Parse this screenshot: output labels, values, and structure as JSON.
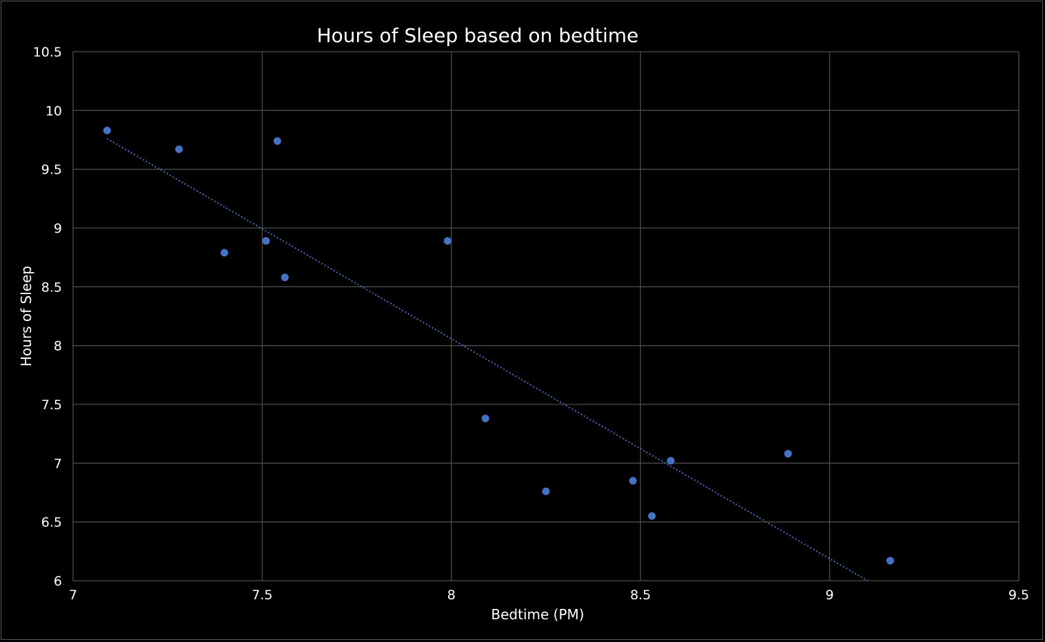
{
  "chart_data": {
    "type": "scatter",
    "title": "Hours of Sleep based on bedtime",
    "xlabel": "Bedtime (PM)",
    "ylabel": "Hours of Sleep",
    "xlim": [
      7,
      9.5
    ],
    "ylim": [
      6,
      10.5
    ],
    "x_ticks": [
      7,
      7.5,
      8,
      8.5,
      9,
      9.5
    ],
    "y_ticks": [
      6,
      6.5,
      7,
      7.5,
      8,
      8.5,
      9,
      9.5,
      10,
      10.5
    ],
    "x_tick_labels": [
      "7",
      "7.5",
      "8",
      "8.5",
      "9",
      "9.5"
    ],
    "y_tick_labels": [
      "6",
      "6.5",
      "7",
      "7.5",
      "8",
      "8.5",
      "9",
      "9.5",
      "10",
      "10.5"
    ],
    "grid": true,
    "legend": "none",
    "series": [
      {
        "color": "#4472c4",
        "points": [
          {
            "x": 7.09,
            "y": 9.83
          },
          {
            "x": 7.28,
            "y": 9.67
          },
          {
            "x": 7.54,
            "y": 9.74
          },
          {
            "x": 7.4,
            "y": 8.79
          },
          {
            "x": 7.51,
            "y": 8.89
          },
          {
            "x": 7.56,
            "y": 8.58
          },
          {
            "x": 7.99,
            "y": 8.89
          },
          {
            "x": 8.09,
            "y": 7.38
          },
          {
            "x": 8.25,
            "y": 6.76
          },
          {
            "x": 8.48,
            "y": 6.85
          },
          {
            "x": 8.53,
            "y": 6.55
          },
          {
            "x": 8.58,
            "y": 7.02
          },
          {
            "x": 8.89,
            "y": 7.08
          },
          {
            "x": 9.16,
            "y": 6.17
          }
        ]
      }
    ],
    "trendline": {
      "type": "linear",
      "style": "dotted",
      "color": "#4472c4",
      "from": {
        "x": 7.09,
        "y": 9.76
      },
      "to": {
        "x": 9.1,
        "y": 6.0
      }
    }
  }
}
